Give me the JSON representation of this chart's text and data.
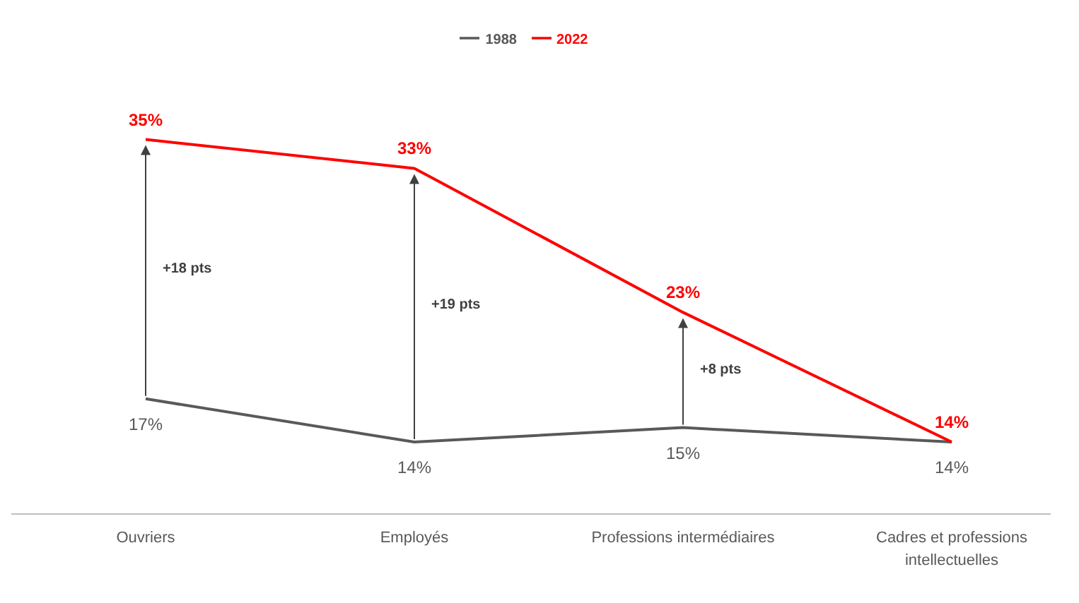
{
  "chart_data": {
    "type": "line",
    "categories": [
      "Ouvriers",
      "Employés",
      "Professions intermédiaires",
      "Cadres et professions intellectuelles"
    ],
    "series": [
      {
        "name": "1988",
        "color": "#595959",
        "values": [
          17,
          14,
          15,
          14
        ],
        "value_labels": [
          "17%",
          "14%",
          "15%",
          "14%"
        ]
      },
      {
        "name": "2022",
        "color": "#ff0000",
        "values": [
          35,
          33,
          23,
          14
        ],
        "value_labels": [
          "35%",
          "33%",
          "23%",
          "14%"
        ]
      }
    ],
    "annotations": [
      "+18 pts",
      "+19 pts",
      "+8 pts"
    ],
    "legend": "top",
    "marker": "none"
  }
}
